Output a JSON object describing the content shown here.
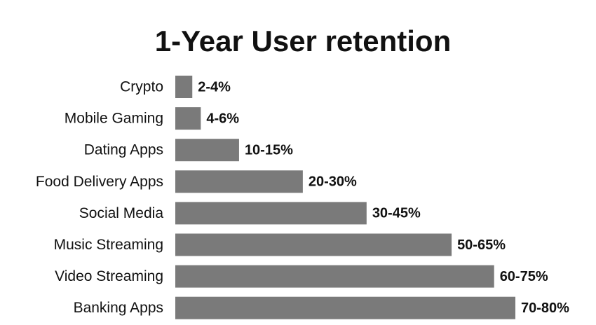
{
  "chart_data": {
    "type": "bar",
    "orientation": "horizontal",
    "title": "1-Year User retention",
    "categories": [
      "Crypto",
      "Mobile Gaming",
      "Dating Apps",
      "Food Delivery Apps",
      "Social Media",
      "Music Streaming",
      "Video Streaming",
      "Banking Apps"
    ],
    "low": [
      2,
      4,
      10,
      20,
      30,
      50,
      60,
      70
    ],
    "values": [
      4,
      6,
      15,
      30,
      45,
      65,
      75,
      80
    ],
    "value_labels": [
      "2-4%",
      "4-6%",
      "10-15%",
      "20-30%",
      "30-45%",
      "50-65%",
      "60-75%",
      "70-80%"
    ],
    "color": "#7a7a7a"
  }
}
